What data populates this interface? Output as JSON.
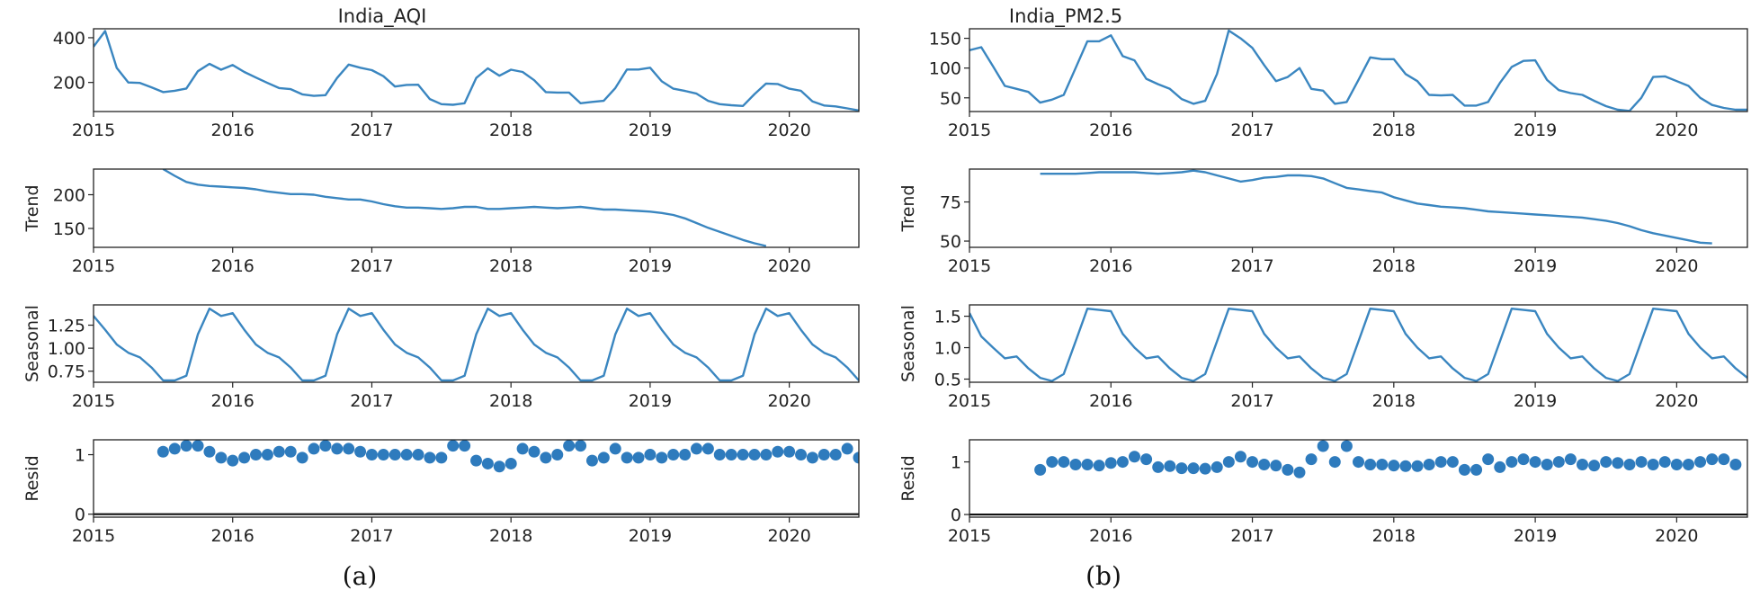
{
  "chart_data": [
    {
      "type": "line",
      "title": "India_AQI",
      "caption": "(a)",
      "xlim": [
        "2015-01",
        "2020-07"
      ],
      "x_ticks": [
        "2015",
        "2016",
        "2017",
        "2018",
        "2019",
        "2020"
      ],
      "x_start": "2015-01",
      "subplots": [
        {
          "id": "observed",
          "ylabel": "",
          "ylim": [
            70,
            440
          ],
          "yticks": [
            200,
            400
          ],
          "series": [
            {
              "kind": "line",
              "start": "2015-01",
              "values": [
                360,
                430,
                265,
                200,
                198,
                178,
                157,
                163,
                173,
                250,
                283,
                257,
                278,
                247,
                222,
                198,
                175,
                170,
                147,
                140,
                143,
                220,
                280,
                266,
                255,
                228,
                182,
                189,
                190,
                126,
                103,
                100,
                107,
                220,
                263,
                230,
                257,
                247,
                210,
                157,
                155,
                155,
                107,
                113,
                118,
                175,
                258,
                258,
                266,
                205,
                172,
                162,
                150,
                118,
                103,
                98,
                95,
                148,
                195,
                193,
                172,
                163,
                115,
                97,
                93,
                84,
                75
              ]
            }
          ]
        },
        {
          "id": "trend",
          "ylabel": "Trend",
          "ylim": [
            122,
            238
          ],
          "yticks": [
            150,
            200
          ],
          "series": [
            {
              "kind": "line",
              "start": "2015-07",
              "values": [
                238,
                228,
                219,
                215,
                213,
                212,
                211,
                210,
                208,
                205,
                203,
                201,
                201,
                200,
                197,
                195,
                193,
                193,
                190,
                186,
                183,
                181,
                181,
                180,
                179,
                180,
                182,
                182,
                179,
                179,
                180,
                181,
                182,
                181,
                180,
                181,
                182,
                180,
                178,
                178,
                177,
                176,
                175,
                173,
                170,
                165,
                158,
                151,
                145,
                139,
                133,
                128,
                124
              ]
            }
          ]
        },
        {
          "id": "seasonal",
          "ylabel": "Seasonal",
          "ylim": [
            0.63,
            1.47
          ],
          "yticks": [
            0.75,
            1.0,
            1.25
          ],
          "ytick_labels": [
            "0.75",
            "1.00",
            "1.25"
          ],
          "series": [
            {
              "kind": "line",
              "start": "2015-01",
              "values": [
                1.35,
                1.2,
                1.04,
                0.95,
                0.9,
                0.79,
                0.65,
                0.65,
                0.7,
                1.15,
                1.43,
                1.35,
                1.38,
                1.2,
                1.04,
                0.95,
                0.9,
                0.79,
                0.65,
                0.65,
                0.7,
                1.15,
                1.43,
                1.35,
                1.38,
                1.2,
                1.04,
                0.95,
                0.9,
                0.79,
                0.65,
                0.65,
                0.7,
                1.15,
                1.43,
                1.35,
                1.38,
                1.2,
                1.04,
                0.95,
                0.9,
                0.79,
                0.65,
                0.65,
                0.7,
                1.15,
                1.43,
                1.35,
                1.38,
                1.2,
                1.04,
                0.95,
                0.9,
                0.79,
                0.65,
                0.65,
                0.7,
                1.15,
                1.43,
                1.35,
                1.38,
                1.2,
                1.04,
                0.95,
                0.9,
                0.79,
                0.65
              ]
            }
          ]
        },
        {
          "id": "resid",
          "ylabel": "Resid",
          "ylim": [
            -0.05,
            1.25
          ],
          "yticks": [
            0,
            1
          ],
          "zero_line": 0,
          "series": [
            {
              "kind": "scatter",
              "start": "2015-07",
              "values": [
                1.05,
                1.1,
                1.15,
                1.15,
                1.05,
                0.95,
                0.9,
                0.95,
                1.0,
                1.0,
                1.05,
                1.05,
                0.95,
                1.1,
                1.15,
                1.1,
                1.1,
                1.05,
                1.0,
                1.0,
                1.0,
                1.0,
                1.0,
                0.95,
                0.95,
                1.15,
                1.15,
                0.9,
                0.85,
                0.8,
                0.85,
                1.1,
                1.05,
                0.95,
                1.0,
                1.15,
                1.15,
                0.9,
                0.95,
                1.1,
                0.95,
                0.95,
                1.0,
                0.95,
                1.0,
                1.0,
                1.1,
                1.1,
                1.0,
                1.0,
                1.0,
                1.0,
                1.0,
                1.05,
                1.05,
                1.0,
                0.95,
                1.0,
                1.0,
                1.1,
                0.95
              ]
            }
          ]
        }
      ]
    },
    {
      "type": "line",
      "title": "India_PM2.5",
      "caption": "(b)",
      "xlim": [
        "2015-01",
        "2020-07"
      ],
      "x_ticks": [
        "2015",
        "2016",
        "2017",
        "2018",
        "2019",
        "2020"
      ],
      "x_start": "2015-01",
      "subplots": [
        {
          "id": "observed",
          "ylabel": "",
          "ylim": [
            27,
            166
          ],
          "yticks": [
            50,
            100,
            150
          ],
          "series": [
            {
              "kind": "line",
              "start": "2015-01",
              "values": [
                130,
                135,
                103,
                70,
                65,
                60,
                42,
                47,
                55,
                100,
                145,
                145,
                155,
                120,
                113,
                82,
                73,
                65,
                48,
                40,
                45,
                90,
                163,
                150,
                134,
                105,
                78,
                85,
                100,
                65,
                62,
                40,
                43,
                80,
                118,
                115,
                115,
                90,
                78,
                55,
                54,
                55,
                37,
                37,
                43,
                75,
                102,
                112,
                113,
                80,
                63,
                58,
                55,
                45,
                36,
                30,
                28,
                50,
                85,
                86,
                78,
                70,
                50,
                38,
                33,
                30,
                30
              ]
            }
          ]
        },
        {
          "id": "trend",
          "ylabel": "Trend",
          "ylim": [
            46,
            96
          ],
          "yticks": [
            50,
            75
          ],
          "series": [
            {
              "kind": "line",
              "start": "2015-07",
              "values": [
                93,
                93,
                93,
                93,
                93.5,
                94,
                94,
                94,
                94,
                93.5,
                93,
                93.5,
                94,
                95,
                94,
                92,
                90,
                88,
                89,
                90.5,
                91,
                92,
                92,
                91.5,
                90,
                87,
                84,
                83,
                82,
                81,
                78,
                76,
                74,
                73,
                72,
                71.5,
                71,
                70,
                69,
                68.5,
                68,
                67.5,
                67,
                66.5,
                66,
                65.5,
                65,
                64,
                63,
                61.5,
                59.5,
                57,
                55,
                53.5,
                52,
                50.5,
                49,
                48.5
              ]
            }
          ]
        },
        {
          "id": "seasonal",
          "ylabel": "Seasonal",
          "ylim": [
            0.45,
            1.68
          ],
          "yticks": [
            0.5,
            1.0,
            1.5
          ],
          "ytick_labels": [
            "0.5",
            "1.0",
            "1.5"
          ],
          "series": [
            {
              "kind": "line",
              "start": "2015-01",
              "values": [
                1.55,
                1.18,
                1.0,
                0.83,
                0.86,
                0.67,
                0.52,
                0.47,
                0.58,
                1.1,
                1.62,
                1.6,
                1.58,
                1.22,
                1.0,
                0.83,
                0.86,
                0.67,
                0.52,
                0.47,
                0.58,
                1.1,
                1.62,
                1.6,
                1.58,
                1.22,
                1.0,
                0.83,
                0.86,
                0.67,
                0.52,
                0.47,
                0.58,
                1.1,
                1.62,
                1.6,
                1.58,
                1.22,
                1.0,
                0.83,
                0.86,
                0.67,
                0.52,
                0.47,
                0.58,
                1.1,
                1.62,
                1.6,
                1.58,
                1.22,
                1.0,
                0.83,
                0.86,
                0.67,
                0.52,
                0.47,
                0.58,
                1.1,
                1.62,
                1.6,
                1.58,
                1.22,
                1.0,
                0.83,
                0.86,
                0.67,
                0.52
              ]
            }
          ]
        },
        {
          "id": "resid",
          "ylabel": "Resid",
          "ylim": [
            -0.05,
            1.42
          ],
          "yticks": [
            0,
            1
          ],
          "zero_line": 0,
          "series": [
            {
              "kind": "scatter",
              "start": "2015-07",
              "values": [
                0.85,
                1.0,
                1.0,
                0.95,
                0.95,
                0.93,
                0.98,
                1.0,
                1.1,
                1.05,
                0.9,
                0.92,
                0.88,
                0.88,
                0.87,
                0.9,
                1.0,
                1.1,
                1.0,
                0.95,
                0.93,
                0.85,
                0.8,
                1.05,
                1.3,
                1.0,
                1.3,
                1.0,
                0.95,
                0.95,
                0.93,
                0.92,
                0.92,
                0.95,
                1.0,
                1.0,
                0.85,
                0.85,
                1.05,
                0.9,
                1.0,
                1.05,
                1.0,
                0.95,
                1.0,
                1.05,
                0.95,
                0.93,
                1.0,
                0.98,
                0.95,
                1.0,
                0.95,
                1.0,
                0.95,
                0.95,
                1.0,
                1.05,
                1.05,
                0.95
              ]
            }
          ]
        }
      ]
    }
  ]
}
